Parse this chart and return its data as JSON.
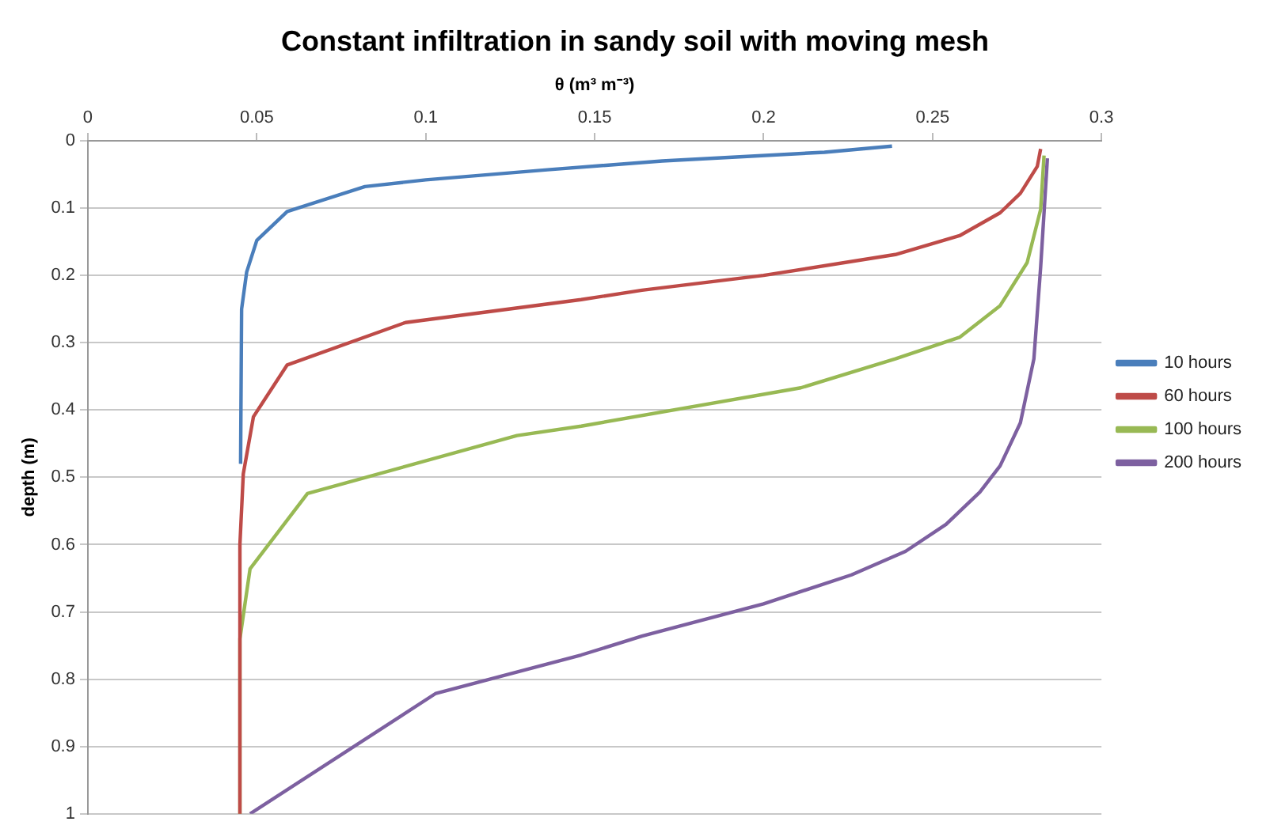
{
  "chart_data": {
    "type": "line",
    "title": "Constant infiltration in sandy soil with moving mesh",
    "xlabel": "θ (m³ m⁻³)",
    "ylabel": "depth (m)",
    "xlim": [
      0,
      0.3
    ],
    "xticks": [
      0,
      0.05,
      0.1,
      0.15,
      0.2,
      0.25,
      0.3
    ],
    "ylim": [
      1,
      0
    ],
    "yticks": [
      0,
      0.1,
      0.2,
      0.3,
      0.4,
      0.5,
      0.6,
      0.7,
      0.8,
      0.9,
      1
    ],
    "grid": "y",
    "legend": "right",
    "marker": "none",
    "series": [
      {
        "name": "10 hours",
        "color": "#4a7ebb",
        "x": [
          0.238,
          0.218,
          0.17,
          0.136,
          0.1,
          0.082,
          0.059,
          0.05,
          0.047,
          0.0455,
          0.0452
        ],
        "values": [
          0.008,
          0.017,
          0.03,
          0.043,
          0.058,
          0.068,
          0.105,
          0.148,
          0.195,
          0.25,
          0.48
        ]
      },
      {
        "name": "60 hours",
        "color": "#be4b48",
        "x": [
          0.282,
          0.281,
          0.276,
          0.27,
          0.258,
          0.239,
          0.2,
          0.164,
          0.146,
          0.094,
          0.059,
          0.049,
          0.046,
          0.045,
          0.045
        ],
        "values": [
          0.012,
          0.038,
          0.078,
          0.107,
          0.141,
          0.169,
          0.2,
          0.222,
          0.236,
          0.27,
          0.333,
          0.41,
          0.495,
          0.6,
          1
        ]
      },
      {
        "name": "100 hours",
        "color": "#98b954",
        "x": [
          0.283,
          0.282,
          0.278,
          0.27,
          0.258,
          0.239,
          0.211,
          0.146,
          0.127,
          0.065,
          0.048,
          0.045,
          0.045
        ],
        "values": [
          0.022,
          0.102,
          0.181,
          0.245,
          0.292,
          0.324,
          0.367,
          0.424,
          0.438,
          0.524,
          0.636,
          0.74,
          1
        ]
      },
      {
        "name": "200 hours",
        "color": "#7d60a0",
        "x": [
          0.284,
          0.282,
          0.28,
          0.276,
          0.27,
          0.264,
          0.254,
          0.242,
          0.226,
          0.2,
          0.164,
          0.146,
          0.103,
          0.048
        ],
        "values": [
          0.026,
          0.188,
          0.324,
          0.419,
          0.483,
          0.522,
          0.57,
          0.61,
          0.645,
          0.688,
          0.736,
          0.764,
          0.821,
          1
        ]
      }
    ]
  }
}
